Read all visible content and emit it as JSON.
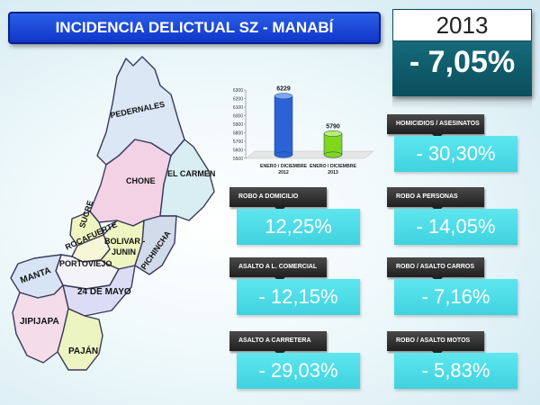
{
  "header": {
    "title": "INCIDENCIA DELICTUAL SZ - MANABÍ"
  },
  "summary": {
    "year": "2013",
    "change": "- 7,05%"
  },
  "map": {
    "cantons": [
      "PEDERNALES",
      "CHONE",
      "EL CARMEN",
      "SUCRE",
      "ROCAFUERTE",
      "BOLIVAR -",
      "JUNIN",
      "PICHINCHA",
      "PORTOVIEJO",
      "MANTA",
      "24 DE MAYO",
      "JIPIJAPA",
      "PAJÁN"
    ]
  },
  "chart_data": {
    "type": "bar",
    "categories": [
      "ENERO / DICIEMBRE 2012",
      "ENERO / DICIEMBRE 2013"
    ],
    "category_lines": [
      [
        "ENERO / DICIEMBRE",
        "2012"
      ],
      [
        "ENERO / DICIEMBRE",
        "2013"
      ]
    ],
    "values": [
      6229,
      5790
    ],
    "value_labels": [
      "6229",
      "5790"
    ],
    "ylim": [
      5500,
      6300
    ],
    "yticks": [
      "6300",
      "6200",
      "6100",
      "6000",
      "5900",
      "5800",
      "5700",
      "5600",
      "5500"
    ],
    "colors": [
      "#2b63d6",
      "#7fd81c"
    ]
  },
  "stats": [
    {
      "label": "HOMICIDIOS / ASESINATOS",
      "value": "- 30,30%"
    },
    {
      "label": "ROBO A DOMICILIO",
      "value": "12,25%"
    },
    {
      "label": "ROBO A PERSONAS",
      "value": "- 14,05%"
    },
    {
      "label": "ASALTO A L. COMERCIAL",
      "value": "- 12,15%"
    },
    {
      "label": "ROBO / ASALTO CARROS",
      "value": "- 7,16%"
    },
    {
      "label": "ASALTO A CARRETERA",
      "value": "- 29,03%"
    },
    {
      "label": "ROBO / ASALTO MOTOS",
      "value": "- 5,83%"
    }
  ]
}
